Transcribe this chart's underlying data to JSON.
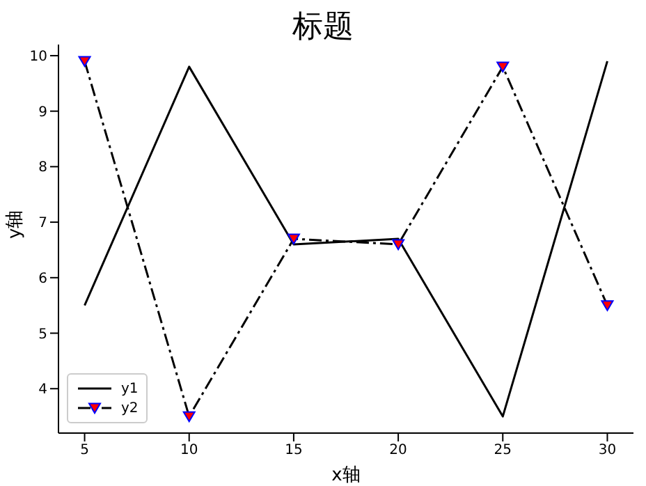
{
  "chart_data": {
    "type": "line",
    "title": "标题",
    "xlabel": "x轴",
    "ylabel": "y轴",
    "x": [
      5,
      10,
      15,
      20,
      25,
      30
    ],
    "series": [
      {
        "name": "y1",
        "color": "#000000",
        "values": [
          5.5,
          9.8,
          6.6,
          6.7,
          3.5,
          9.9
        ],
        "line_style": "solid",
        "marker": "none"
      },
      {
        "name": "y2",
        "color": "#000000",
        "values": [
          9.9,
          3.5,
          6.7,
          6.6,
          9.8,
          5.5
        ],
        "line_style": "dashed",
        "marker": "triangle"
      }
    ],
    "xlim": [
      3.75,
      31.25
    ],
    "xticks": [
      5,
      10,
      15,
      20,
      25,
      30
    ],
    "ylim": [
      3.2,
      10.2
    ],
    "yticks": [
      4,
      5,
      6,
      7,
      8,
      9,
      10
    ],
    "grid": false,
    "legend": "bottom left"
  }
}
